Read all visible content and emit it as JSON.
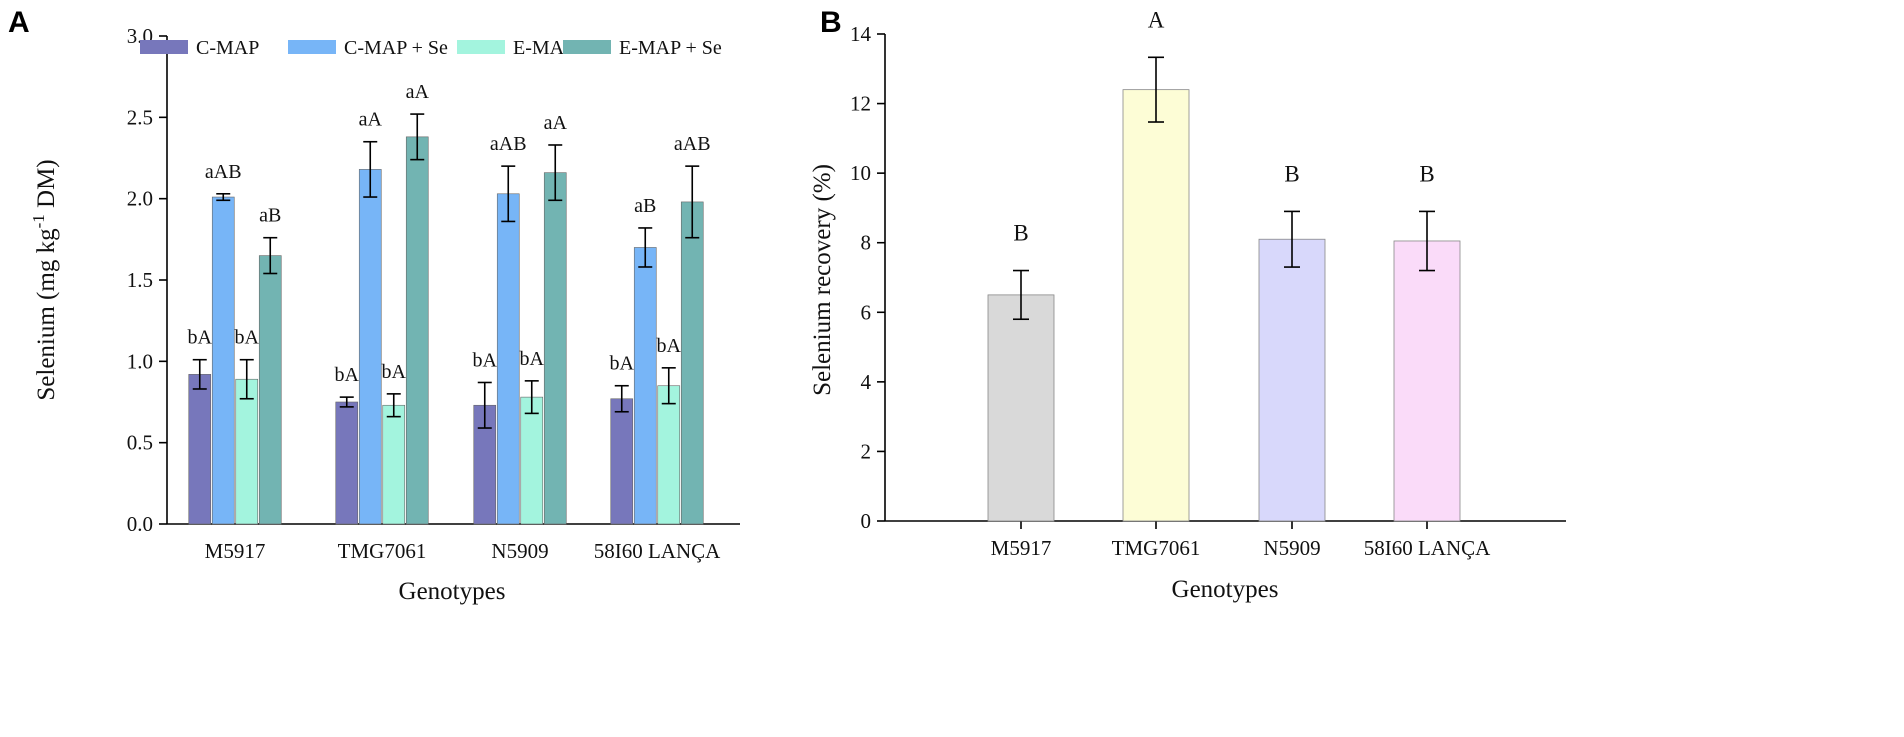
{
  "chart_data": [
    {
      "type": "bar",
      "panel_label": "A",
      "categories": [
        "M5917",
        "TMG7061",
        "N5909",
        "58I60 LANÇA"
      ],
      "xlabel": "Genotypes",
      "ylabel_main": "Selenium (mg kg",
      "ylabel_sup": "-1",
      "ylabel_end": " DM)",
      "ylim": [
        0,
        3.0
      ],
      "yticks": [
        0.0,
        0.5,
        1.0,
        1.5,
        2.0,
        2.5,
        3.0
      ],
      "ytick_labels": [
        "0.0",
        "0.5",
        "1.0",
        "1.5",
        "2.0",
        "2.5",
        "3.0"
      ],
      "legend_position": "top",
      "series": [
        {
          "name": "C-MAP",
          "color": "#7777bb",
          "values": [
            0.92,
            0.75,
            0.73,
            0.77
          ],
          "errors": [
            0.09,
            0.03,
            0.14,
            0.08
          ],
          "labels": [
            "bA",
            "bA",
            "bA",
            "bA"
          ]
        },
        {
          "name": "C-MAP + Se",
          "color": "#77b5f7",
          "values": [
            2.01,
            2.18,
            2.03,
            1.7
          ],
          "errors": [
            0.02,
            0.17,
            0.17,
            0.12
          ],
          "labels": [
            "aAB",
            "aA",
            "aAB",
            "aB"
          ]
        },
        {
          "name": "E-MAP",
          "color": "#a3f4de",
          "values": [
            0.89,
            0.73,
            0.78,
            0.85
          ],
          "errors": [
            0.12,
            0.07,
            0.1,
            0.11
          ],
          "labels": [
            "bA",
            "bA",
            "bA",
            "bA"
          ]
        },
        {
          "name": "E-MAP + Se",
          "color": "#72b4b2",
          "values": [
            1.65,
            2.38,
            2.16,
            1.98
          ],
          "errors": [
            0.11,
            0.14,
            0.17,
            0.22
          ],
          "labels": [
            "aB",
            "aA",
            "aA",
            "aAB"
          ]
        }
      ]
    },
    {
      "type": "bar",
      "panel_label": "B",
      "categories": [
        "M5917",
        "TMG7061",
        "N5909",
        "58I60 LANÇA"
      ],
      "xlabel": "Genotypes",
      "ylabel": "Selenium recovery (%)",
      "ylim": [
        0,
        14
      ],
      "yticks": [
        0,
        2,
        4,
        6,
        8,
        10,
        12,
        14
      ],
      "ytick_labels": [
        "0",
        "2",
        "4",
        "6",
        "8",
        "10",
        "12",
        "14"
      ],
      "values": [
        6.5,
        12.4,
        8.1,
        8.05
      ],
      "errors": [
        0.7,
        0.93,
        0.8,
        0.85
      ],
      "colors": [
        "#d9d9d9",
        "#fdfdd6",
        "#d8d8fb",
        "#fadbf9"
      ],
      "labels": [
        "B",
        "A",
        "B",
        "B"
      ]
    }
  ]
}
